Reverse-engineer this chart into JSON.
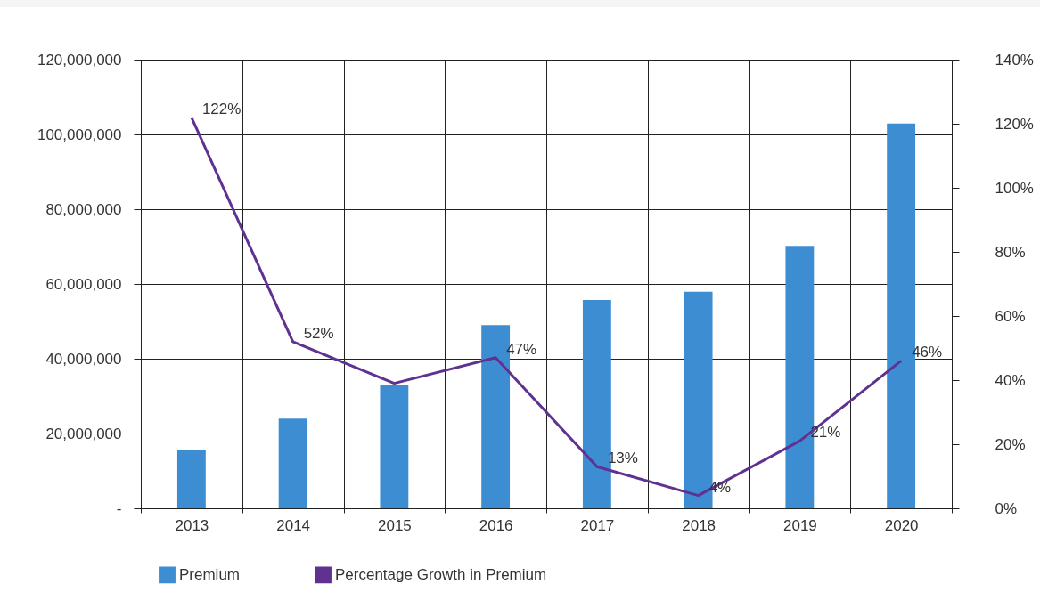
{
  "chart_data": {
    "type": "bar",
    "categories": [
      "2013",
      "2014",
      "2015",
      "2016",
      "2017",
      "2018",
      "2019",
      "2020"
    ],
    "series": [
      {
        "name": "Premium",
        "color": "#3d8dd3",
        "values": [
          15700000,
          24000000,
          33000000,
          49000000,
          55700000,
          57900000,
          70200000,
          102900000
        ]
      },
      {
        "name": "Percentage Growth in Premium",
        "type": "line",
        "axis": "y2",
        "color": "#5f3291",
        "values": [
          122,
          52,
          39,
          47,
          13,
          4,
          21,
          46
        ],
        "value_labels": [
          "122%",
          "52%",
          null,
          "47%",
          "13%",
          "4%",
          "21%",
          "46%"
        ]
      }
    ],
    "ylim": [
      0,
      120000000
    ],
    "yticks": [
      {
        "value": 0,
        "label": "-"
      },
      {
        "value": 20000000,
        "label": "20,000,000"
      },
      {
        "value": 40000000,
        "label": "40,000,000"
      },
      {
        "value": 60000000,
        "label": "60,000,000"
      },
      {
        "value": 80000000,
        "label": "80,000,000"
      },
      {
        "value": 100000000,
        "label": "100,000,000"
      },
      {
        "value": 120000000,
        "label": "120,000,000"
      }
    ],
    "y2lim": [
      0,
      140
    ],
    "y2ticks": [
      {
        "value": 0,
        "label": "0%"
      },
      {
        "value": 20,
        "label": "20%"
      },
      {
        "value": 40,
        "label": "40%"
      },
      {
        "value": 60,
        "label": "60%"
      },
      {
        "value": 80,
        "label": "80%"
      },
      {
        "value": 100,
        "label": "100%"
      },
      {
        "value": 120,
        "label": "120%"
      },
      {
        "value": 140,
        "label": "140%"
      }
    ],
    "grid": true,
    "legend": "bottom"
  }
}
